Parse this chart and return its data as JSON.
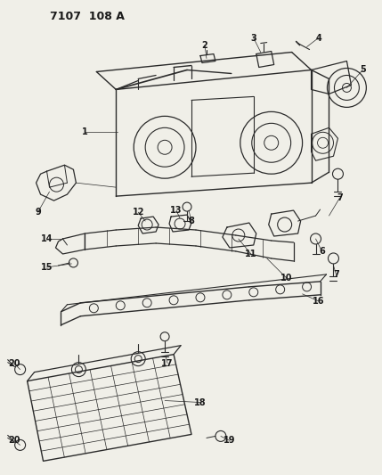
{
  "title": "7107 108 A",
  "bg_color": "#f0efe8",
  "line_color": "#2a2a2a",
  "text_color": "#1a1a1a",
  "fig_width": 4.29,
  "fig_height": 5.33,
  "dpi": 100
}
